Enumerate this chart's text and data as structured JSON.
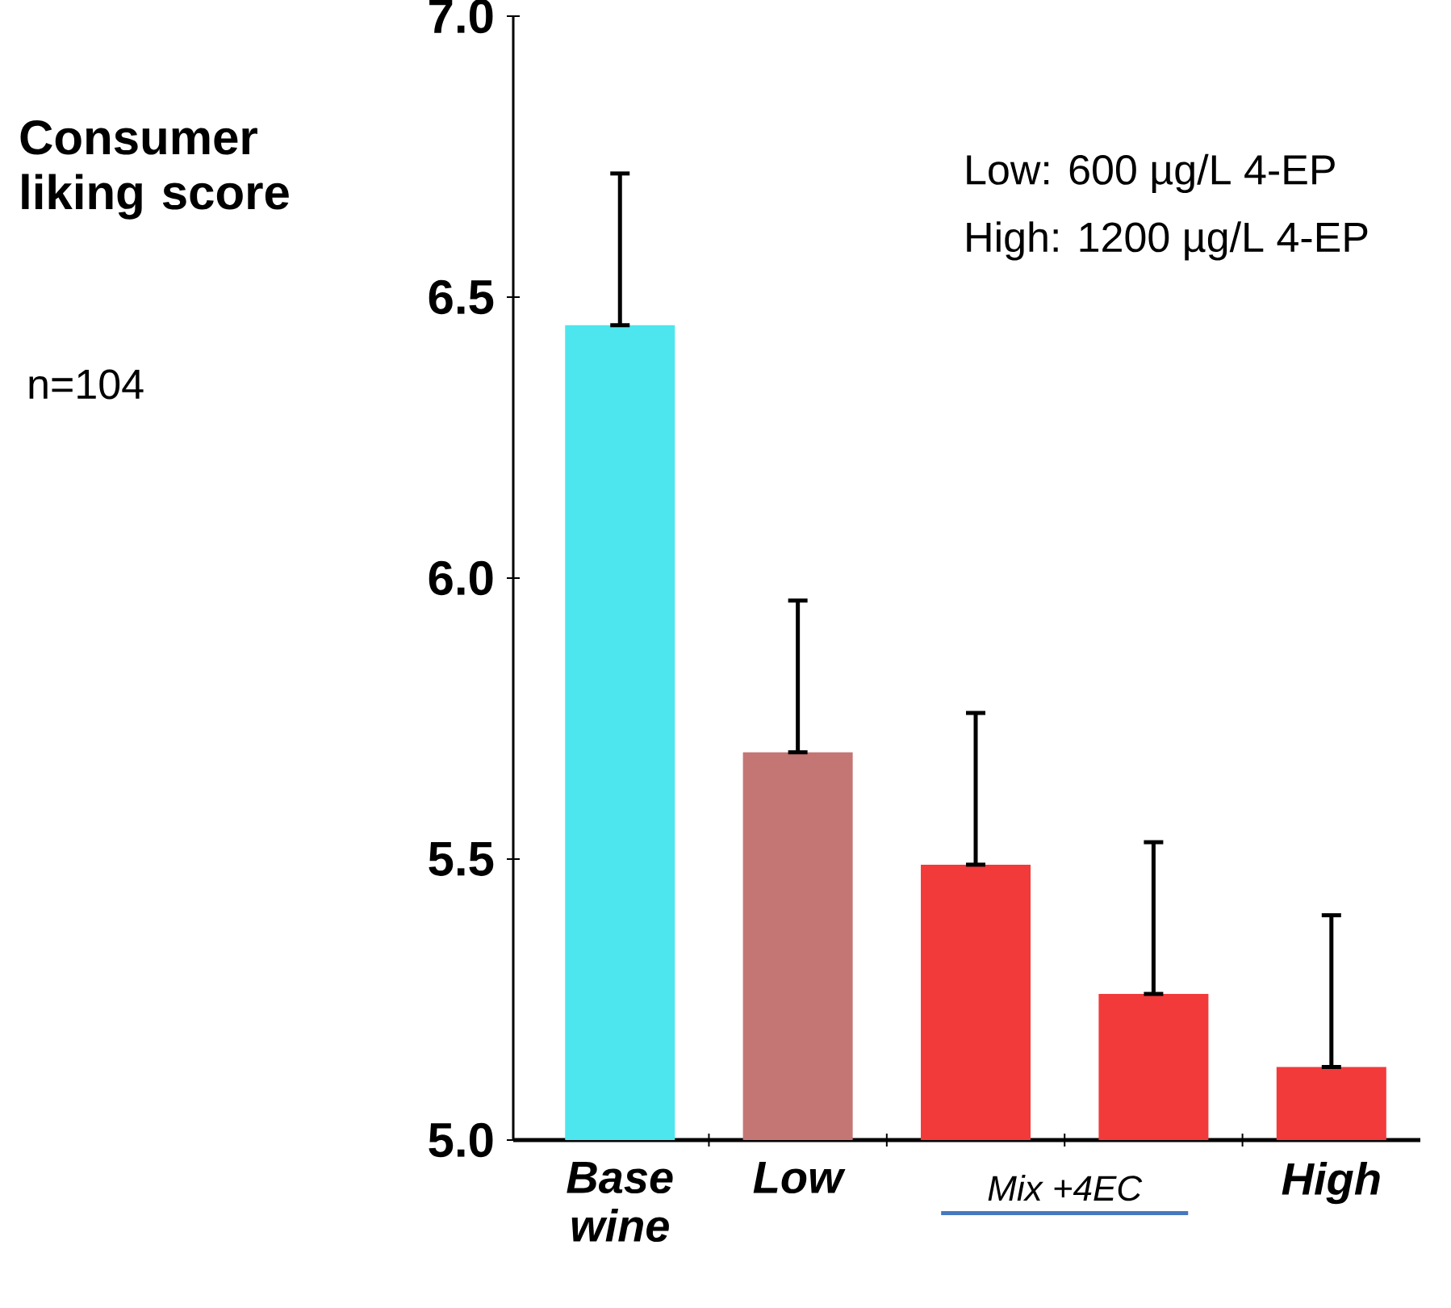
{
  "chart_data": {
    "type": "bar",
    "ylabel": "Consumer liking score",
    "categories": [
      "Base wine",
      "Low",
      null,
      null,
      "High"
    ],
    "values": [
      6.45,
      5.69,
      5.49,
      5.26,
      5.13
    ],
    "colors": [
      "#4de6ee",
      "#c47674",
      "#f23a3a",
      "#f23a3a",
      "#f23a3a"
    ],
    "errors": [
      [
        6.45,
        6.72
      ],
      [
        5.69,
        5.96
      ],
      [
        5.49,
        5.76
      ],
      [
        5.26,
        5.53
      ],
      [
        5.13,
        5.4
      ]
    ],
    "ylim": [
      5,
      7
    ],
    "yticks": [
      {
        "value": 5,
        "label": "5.0"
      },
      {
        "value": 5.5,
        "label": "5.5"
      },
      {
        "value": 6,
        "label": "6.0"
      },
      {
        "value": 6.5,
        "label": "6.5"
      },
      {
        "value": 7,
        "label": "7.0"
      }
    ],
    "grid": false,
    "annotations": [
      "n=104",
      "Low:    600 µg/L 4-EP",
      "High: 1200 µg/L 4-EP",
      "Mix +4EC"
    ]
  }
}
